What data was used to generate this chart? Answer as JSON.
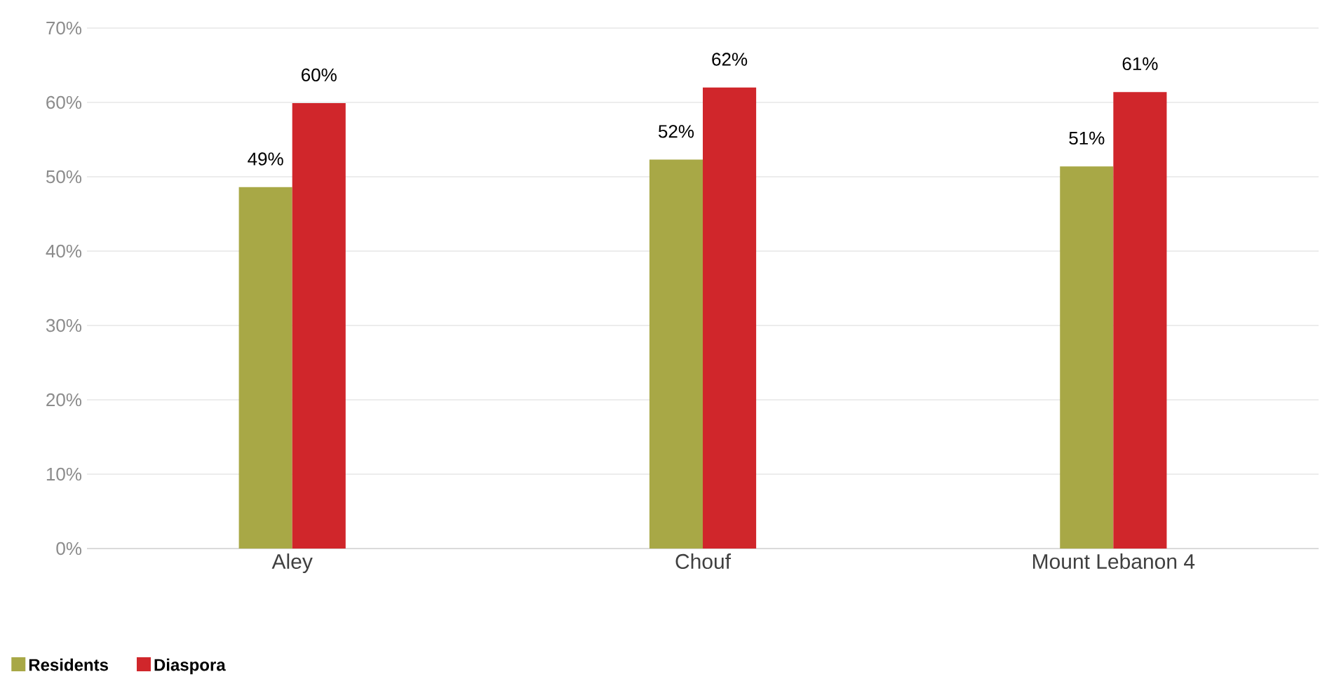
{
  "chart_data": {
    "type": "bar",
    "categories": [
      "Aley",
      "Chouf",
      "Mount Lebanon 4"
    ],
    "series": [
      {
        "name": "Residents",
        "color": "#a8a846",
        "values": [
          48.6,
          52.3,
          51.4
        ],
        "value_labels": [
          "49%",
          "52%",
          "51%"
        ]
      },
      {
        "name": "Diaspora",
        "color": "#d0262b",
        "values": [
          59.9,
          62.0,
          61.4
        ],
        "value_labels": [
          "60%",
          "62%",
          "61%"
        ]
      }
    ],
    "ylim": [
      0,
      70
    ],
    "yticks": [
      {
        "value": 0,
        "label": "0%"
      },
      {
        "value": 10,
        "label": "10%"
      },
      {
        "value": 20,
        "label": "20%"
      },
      {
        "value": 30,
        "label": "30%"
      },
      {
        "value": 40,
        "label": "40%"
      },
      {
        "value": 50,
        "label": "50%"
      },
      {
        "value": 60,
        "label": "60%"
      },
      {
        "value": 70,
        "label": "70%"
      }
    ],
    "grid": "y",
    "legend": "bottom left"
  }
}
